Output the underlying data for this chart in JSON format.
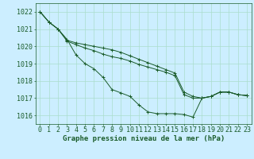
{
  "background_color": "#cceeff",
  "grid_color": "#aaddcc",
  "line_color": "#1a5c2a",
  "marker_color": "#1a5c2a",
  "xlabel": "Graphe pression niveau de la mer (hPa)",
  "xlabel_fontsize": 6.5,
  "ylabel_fontsize": 6,
  "tick_fontsize": 6,
  "xlim": [
    -0.5,
    23.5
  ],
  "ylim": [
    1015.5,
    1022.5
  ],
  "yticks": [
    1016,
    1017,
    1018,
    1019,
    1020,
    1021,
    1022
  ],
  "xticks": [
    0,
    1,
    2,
    3,
    4,
    5,
    6,
    7,
    8,
    9,
    10,
    11,
    12,
    13,
    14,
    15,
    16,
    17,
    18,
    19,
    20,
    21,
    22,
    23
  ],
  "series": [
    [
      1022.0,
      1021.4,
      1021.0,
      1020.4,
      1019.5,
      1019.0,
      1018.7,
      1018.2,
      1017.5,
      1017.3,
      1017.1,
      1016.6,
      1016.2,
      1016.1,
      1016.1,
      1016.1,
      1016.05,
      1015.9,
      1017.0,
      1017.1,
      1017.35,
      1017.35,
      1017.2,
      1017.15
    ],
    [
      1022.0,
      1021.4,
      1021.0,
      1020.3,
      1020.1,
      1019.9,
      1019.75,
      1019.55,
      1019.4,
      1019.3,
      1019.15,
      1018.95,
      1018.8,
      1018.65,
      1018.5,
      1018.3,
      1017.2,
      1017.0,
      1017.0,
      1017.1,
      1017.35,
      1017.35,
      1017.2,
      1017.15
    ],
    [
      1022.0,
      1021.4,
      1021.0,
      1020.35,
      1020.2,
      1020.1,
      1020.0,
      1019.9,
      1019.8,
      1019.65,
      1019.45,
      1019.25,
      1019.05,
      1018.85,
      1018.65,
      1018.45,
      1017.35,
      1017.1,
      1017.0,
      1017.1,
      1017.35,
      1017.35,
      1017.2,
      1017.15
    ]
  ]
}
